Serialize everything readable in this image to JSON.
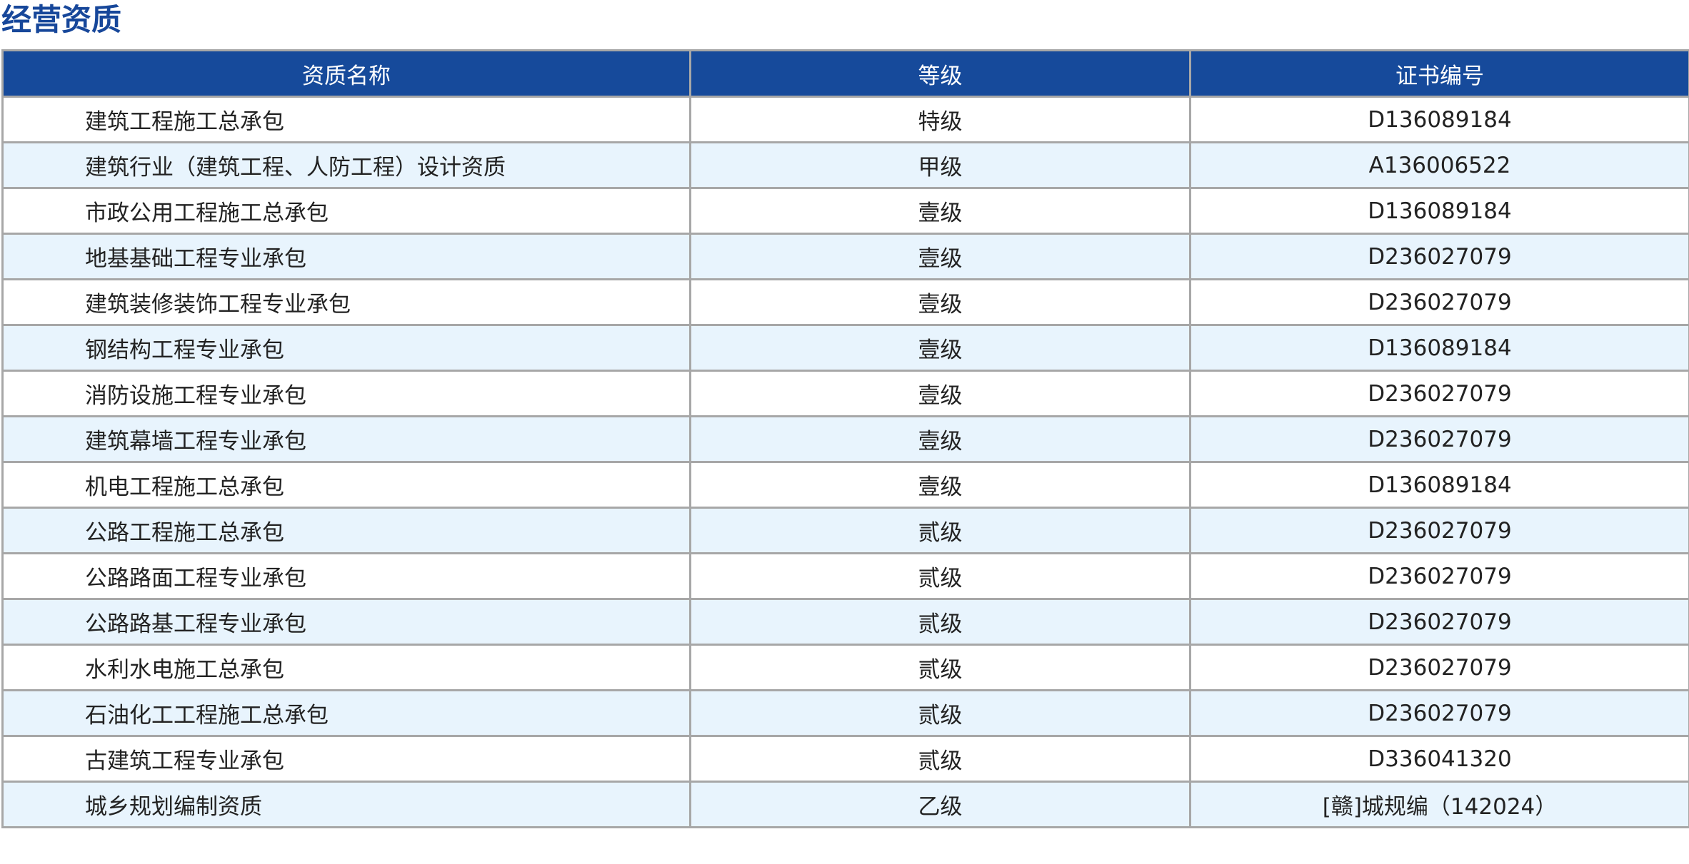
{
  "title": "经营资质",
  "colors": {
    "header_bg": "#164a9b",
    "title": "#17479a",
    "alt_row_bg": "#e8f4fd",
    "border": "#a7a7a7"
  },
  "table": {
    "headers": [
      "资质名称",
      "等级",
      "证书编号"
    ],
    "rows": [
      {
        "name": "建筑工程施工总承包",
        "level": "特级",
        "cert": "D136089184"
      },
      {
        "name": "建筑行业（建筑工程、人防工程）设计资质",
        "level": "甲级",
        "cert": "A136006522"
      },
      {
        "name": "市政公用工程施工总承包",
        "level": "壹级",
        "cert": "D136089184"
      },
      {
        "name": "地基基础工程专业承包",
        "level": "壹级",
        "cert": "D236027079"
      },
      {
        "name": "建筑装修装饰工程专业承包",
        "level": "壹级",
        "cert": "D236027079"
      },
      {
        "name": "钢结构工程专业承包",
        "level": "壹级",
        "cert": "D136089184"
      },
      {
        "name": "消防设施工程专业承包",
        "level": "壹级",
        "cert": "D236027079"
      },
      {
        "name": "建筑幕墙工程专业承包",
        "level": "壹级",
        "cert": "D236027079"
      },
      {
        "name": "机电工程施工总承包",
        "level": "壹级",
        "cert": "D136089184"
      },
      {
        "name": "公路工程施工总承包",
        "level": "贰级",
        "cert": "D236027079"
      },
      {
        "name": "公路路面工程专业承包",
        "level": "贰级",
        "cert": "D236027079"
      },
      {
        "name": "公路路基工程专业承包",
        "level": "贰级",
        "cert": "D236027079"
      },
      {
        "name": "水利水电施工总承包",
        "level": "贰级",
        "cert": "D236027079"
      },
      {
        "name": "石油化工工程施工总承包",
        "level": "贰级",
        "cert": "D236027079"
      },
      {
        "name": "古建筑工程专业承包",
        "level": "贰级",
        "cert": "D336041320"
      },
      {
        "name": "城乡规划编制资质",
        "level": "乙级",
        "cert": "[赣]城规编（142024）"
      }
    ]
  }
}
